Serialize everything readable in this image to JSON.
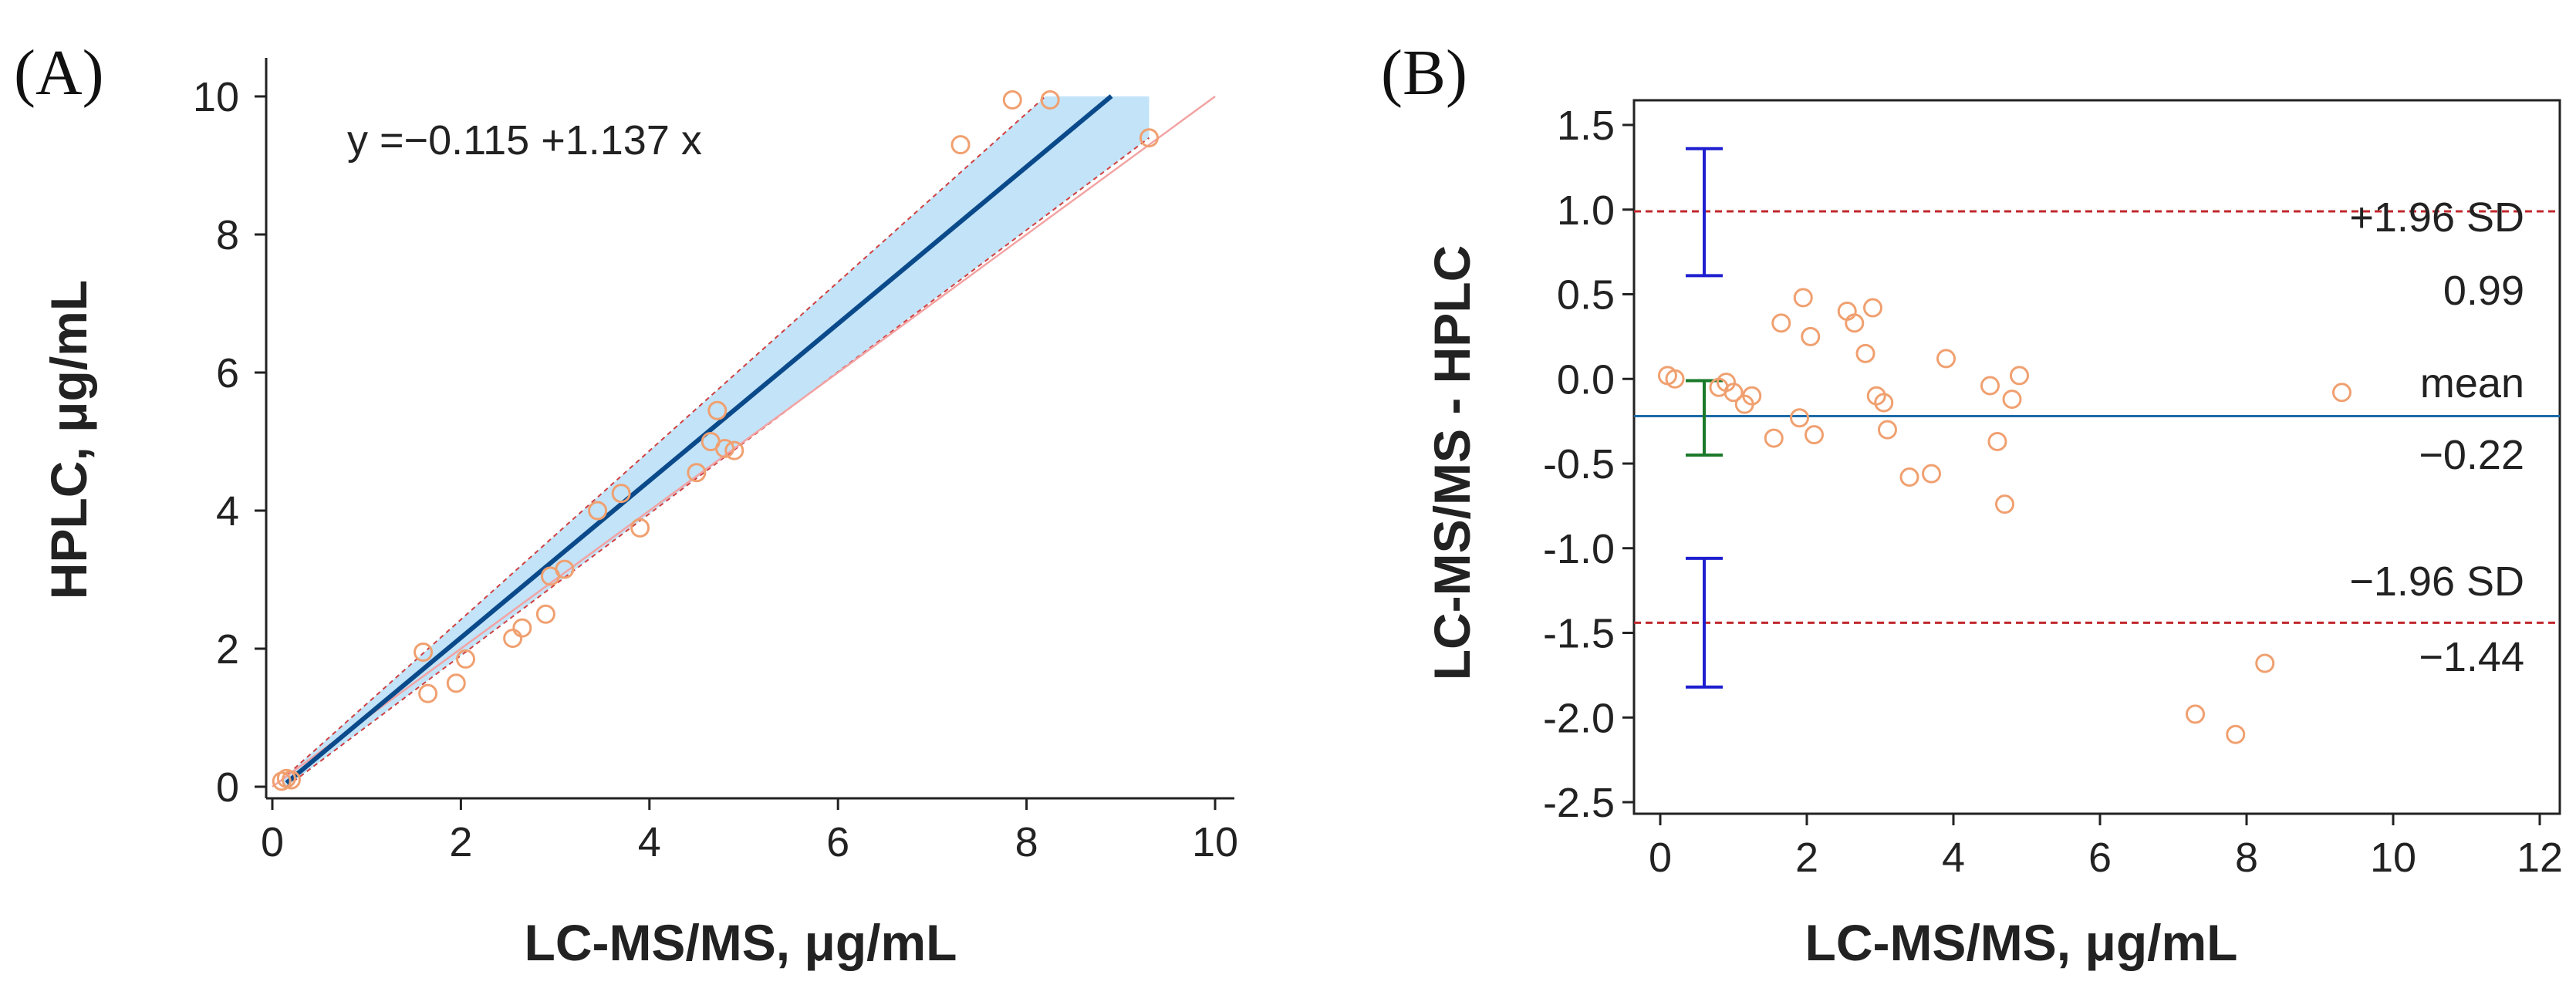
{
  "chart_data": [
    {
      "panel_label": "(A)",
      "type": "scatter",
      "xlabel": "LC-MS/MS, μg/mL",
      "ylabel": "HPLC, μg/mL",
      "xlim": [
        0,
        10
      ],
      "ylim": [
        0,
        10
      ],
      "x_ticks": [
        0,
        2,
        4,
        6,
        8,
        10
      ],
      "y_ticks": [
        0,
        2,
        4,
        6,
        8,
        10
      ],
      "equation": "y =−0.115 +1.137 x",
      "regression": {
        "intercept": -0.115,
        "slope": 1.137,
        "x_range": [
          0.15,
          8.9
        ]
      },
      "confidence_band": {
        "color": "#c2e3f8",
        "upper": [
          [
            0.1,
            0.1
          ],
          [
            8.2,
            10
          ]
        ],
        "lower": [
          [
            0.15,
            0.0
          ],
          [
            9.3,
            9.4
          ]
        ]
      },
      "identity_line": {
        "x": [
          0,
          10
        ],
        "y": [
          0,
          10
        ],
        "color": "#f2a3a3"
      },
      "grid": false,
      "colors": {
        "regression": "#0b4a8a",
        "points": "#f0a070",
        "band_edge": "#d04040"
      },
      "points": [
        [
          0.1,
          0.08
        ],
        [
          0.15,
          0.12
        ],
        [
          0.2,
          0.1
        ],
        [
          1.6,
          1.95
        ],
        [
          1.65,
          1.35
        ],
        [
          1.95,
          1.5
        ],
        [
          2.05,
          1.85
        ],
        [
          2.55,
          2.15
        ],
        [
          2.65,
          2.3
        ],
        [
          2.9,
          2.5
        ],
        [
          2.95,
          3.05
        ],
        [
          3.1,
          3.15
        ],
        [
          3.45,
          4.0
        ],
        [
          3.7,
          4.25
        ],
        [
          3.9,
          3.75
        ],
        [
          4.5,
          4.55
        ],
        [
          4.65,
          5.0
        ],
        [
          4.72,
          5.45
        ],
        [
          4.8,
          4.9
        ],
        [
          4.9,
          4.87
        ],
        [
          7.3,
          9.3
        ],
        [
          7.85,
          9.95
        ],
        [
          8.25,
          9.95
        ],
        [
          9.3,
          9.4
        ]
      ]
    },
    {
      "panel_label": "(B)",
      "type": "scatter",
      "xlabel": "LC-MS/MS, μg/mL",
      "ylabel": "LC-MS/MS - HPLC",
      "xlim": [
        0,
        12
      ],
      "ylim": [
        -2.5,
        1.5
      ],
      "x_ticks": [
        0,
        2,
        4,
        6,
        8,
        10,
        12
      ],
      "y_ticks": [
        "1.5",
        "1.0",
        "0.5",
        "0.0",
        "-0.5",
        "-1.0",
        "-1.5",
        "-2.0",
        "-2.5"
      ],
      "grid": false,
      "mean": {
        "value": -0.22,
        "label": "mean",
        "value_label": "−0.22",
        "color": "#1c6aa8"
      },
      "upper_loa": {
        "value": 0.99,
        "label": "+1.96 SD",
        "value_label": "0.99",
        "color": "#c0282d"
      },
      "lower_loa": {
        "value": -1.44,
        "label": "−1.96 SD",
        "value_label": "−1.44",
        "color": "#c0282d"
      },
      "ci_bars": [
        {
          "x": 0.6,
          "low": 0.61,
          "high": 1.36,
          "color": "#1f1fd0"
        },
        {
          "x": 0.6,
          "low": -0.45,
          "high": -0.01,
          "color": "#1a7a2a"
        },
        {
          "x": 0.6,
          "low": -1.82,
          "high": -1.06,
          "color": "#1f1fd0"
        }
      ],
      "colors": {
        "points": "#f0a070"
      },
      "points": [
        [
          0.1,
          0.02
        ],
        [
          0.2,
          0.0
        ],
        [
          0.8,
          -0.05
        ],
        [
          0.9,
          -0.02
        ],
        [
          1.0,
          -0.08
        ],
        [
          1.15,
          -0.15
        ],
        [
          1.25,
          -0.1
        ],
        [
          1.55,
          -0.35
        ],
        [
          1.65,
          0.33
        ],
        [
          1.9,
          -0.23
        ],
        [
          1.95,
          0.48
        ],
        [
          2.05,
          0.25
        ],
        [
          2.1,
          -0.33
        ],
        [
          2.55,
          0.4
        ],
        [
          2.65,
          0.33
        ],
        [
          2.8,
          0.15
        ],
        [
          2.9,
          0.42
        ],
        [
          2.95,
          -0.1
        ],
        [
          3.05,
          -0.14
        ],
        [
          3.1,
          -0.3
        ],
        [
          3.4,
          -0.58
        ],
        [
          3.7,
          -0.56
        ],
        [
          3.9,
          0.12
        ],
        [
          4.5,
          -0.04
        ],
        [
          4.6,
          -0.37
        ],
        [
          4.7,
          -0.74
        ],
        [
          4.8,
          -0.12
        ],
        [
          4.9,
          0.02
        ],
        [
          7.3,
          -1.98
        ],
        [
          7.85,
          -2.1
        ],
        [
          8.25,
          -1.68
        ],
        [
          9.3,
          -0.08
        ]
      ]
    }
  ]
}
